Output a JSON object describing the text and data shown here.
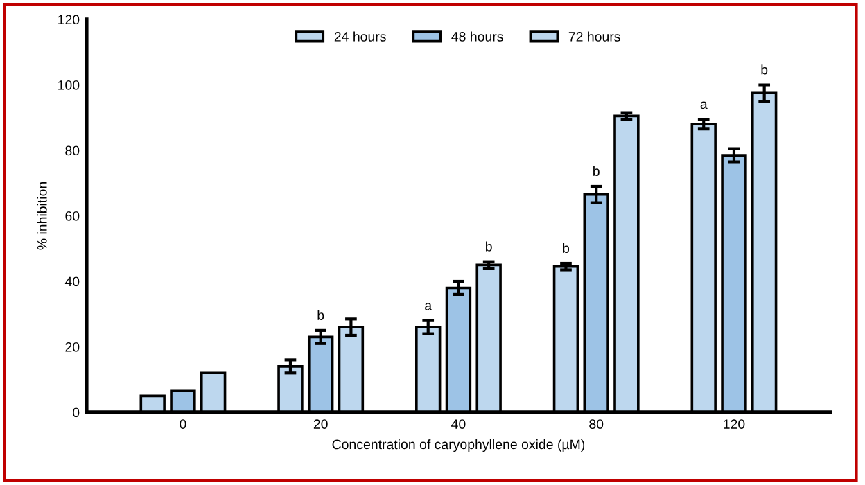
{
  "chart_data": {
    "type": "bar",
    "xlabel": "Concentration of caryophyllene oxide (µM)",
    "ylabel": "% inhibition",
    "categories": [
      "0",
      "20",
      "40",
      "80",
      "120"
    ],
    "series": [
      {
        "name": "24 hours",
        "color": "#bdd7ee",
        "values": [
          5,
          14,
          26,
          44.5,
          88
        ],
        "errors": [
          null,
          2,
          2,
          1,
          1.5
        ],
        "value_labels": [
          null,
          null,
          "a",
          "b",
          "a"
        ]
      },
      {
        "name": "48 hours",
        "color": "#9dc3e6",
        "values": [
          6.5,
          23,
          38,
          66.5,
          78.5
        ],
        "errors": [
          null,
          2,
          2,
          2.5,
          2
        ],
        "value_labels": [
          null,
          "b",
          null,
          "b",
          null
        ]
      },
      {
        "name": "72 hours",
        "color": "#bdd7ee",
        "values": [
          12,
          26,
          45,
          90.5,
          97.5
        ],
        "errors": [
          null,
          2.5,
          1,
          1,
          2.5
        ],
        "value_labels": [
          null,
          null,
          "b",
          null,
          "b"
        ]
      }
    ],
    "ylim": [
      0,
      120
    ],
    "yticks": [
      0,
      20,
      40,
      60,
      80,
      100,
      120
    ],
    "grid": false,
    "legend": "top"
  }
}
